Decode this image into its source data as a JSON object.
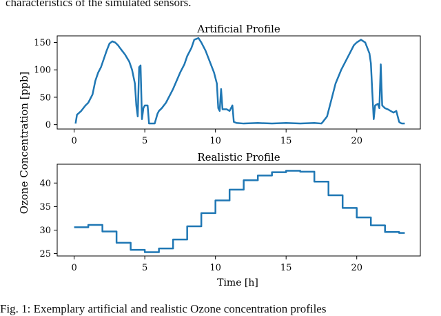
{
  "caption_top": "characteristics of the simulated sensors.",
  "caption_bottom": "Fig. 1: Exemplary artificial and realistic Ozone concentration profiles",
  "shared_ylabel": "Ozone Concentration [ppb]",
  "colors": {
    "line": "#1f77b4",
    "axes": "#000000"
  },
  "chart_data": [
    {
      "type": "line",
      "title": "Artificial Profile",
      "xlabel": "",
      "ylabel": "Ozone Concentration [ppb]",
      "xlim": [
        -1.2,
        24.5
      ],
      "ylim": [
        -8,
        162
      ],
      "xticks": [
        0,
        5,
        10,
        15,
        20
      ],
      "yticks": [
        0,
        50,
        100,
        150
      ],
      "grid": false,
      "series": [
        {
          "x": [
            0.1,
            0.2,
            0.5,
            0.8,
            1.0,
            1.3,
            1.5,
            1.7,
            1.9,
            2.1,
            2.3,
            2.5,
            2.7,
            2.9,
            3.1,
            3.3,
            3.6,
            3.9,
            4.1,
            4.3,
            4.4,
            4.5,
            4.6,
            4.7,
            4.8,
            4.9,
            5.0,
            5.2,
            5.3,
            5.5,
            5.7,
            5.9,
            6.0,
            6.2,
            6.5,
            7.0,
            7.5,
            7.8,
            8.0,
            8.3,
            8.5,
            8.8,
            9.0,
            9.3,
            9.6,
            9.9,
            10.1,
            10.2,
            10.3,
            10.4,
            10.5,
            10.8,
            11.0,
            11.1,
            11.2,
            11.3,
            11.5,
            12.0,
            13.0,
            14.0,
            15.0,
            16.0,
            17.0,
            17.5,
            17.6,
            17.9,
            18.2,
            18.5,
            18.9,
            19.2,
            19.5,
            19.8,
            20.0,
            20.3,
            20.6,
            20.9,
            21.0,
            21.1,
            21.2,
            21.3,
            21.5,
            21.6,
            21.7,
            21.8,
            22.0,
            22.2,
            22.4,
            22.6,
            22.8,
            23.0,
            23.1,
            23.2,
            23.4
          ],
          "values": [
            2,
            18,
            25,
            35,
            40,
            55,
            80,
            95,
            105,
            120,
            135,
            148,
            152,
            150,
            145,
            138,
            128,
            115,
            100,
            75,
            35,
            15,
            105,
            108,
            10,
            30,
            35,
            35,
            2,
            2,
            2,
            20,
            25,
            30,
            40,
            65,
            95,
            110,
            125,
            140,
            155,
            158,
            150,
            135,
            115,
            95,
            75,
            30,
            25,
            65,
            28,
            28,
            25,
            30,
            35,
            5,
            3,
            2,
            3,
            2,
            3,
            2,
            3,
            2,
            5,
            15,
            45,
            75,
            100,
            115,
            130,
            145,
            150,
            155,
            150,
            130,
            112,
            60,
            10,
            35,
            38,
            30,
            110,
            35,
            30,
            28,
            25,
            22,
            25,
            5,
            3,
            2,
            2
          ]
        }
      ]
    },
    {
      "type": "line",
      "title": "Realistic Profile",
      "xlabel": "Time [h]",
      "ylabel": "Ozone Concentration [ppb]",
      "xlim": [
        -1.2,
        24.5
      ],
      "ylim": [
        24.5,
        44
      ],
      "xticks": [
        0,
        5,
        10,
        15,
        20
      ],
      "yticks": [
        25,
        30,
        35,
        40
      ],
      "grid": false,
      "step": "post",
      "series": [
        {
          "x": [
            0,
            1,
            2,
            3,
            4,
            5,
            6,
            7,
            8,
            9,
            10,
            11,
            12,
            13,
            14,
            15,
            16,
            17,
            18,
            19,
            20,
            21,
            22,
            23,
            23.4
          ],
          "values": [
            30.6,
            31.1,
            29.7,
            27.3,
            25.8,
            25.3,
            26.1,
            28.0,
            30.8,
            33.6,
            36.3,
            38.6,
            40.6,
            41.6,
            42.3,
            42.6,
            42.4,
            40.3,
            37.4,
            34.7,
            32.7,
            31.0,
            29.6,
            29.4,
            29.4
          ]
        }
      ]
    }
  ]
}
